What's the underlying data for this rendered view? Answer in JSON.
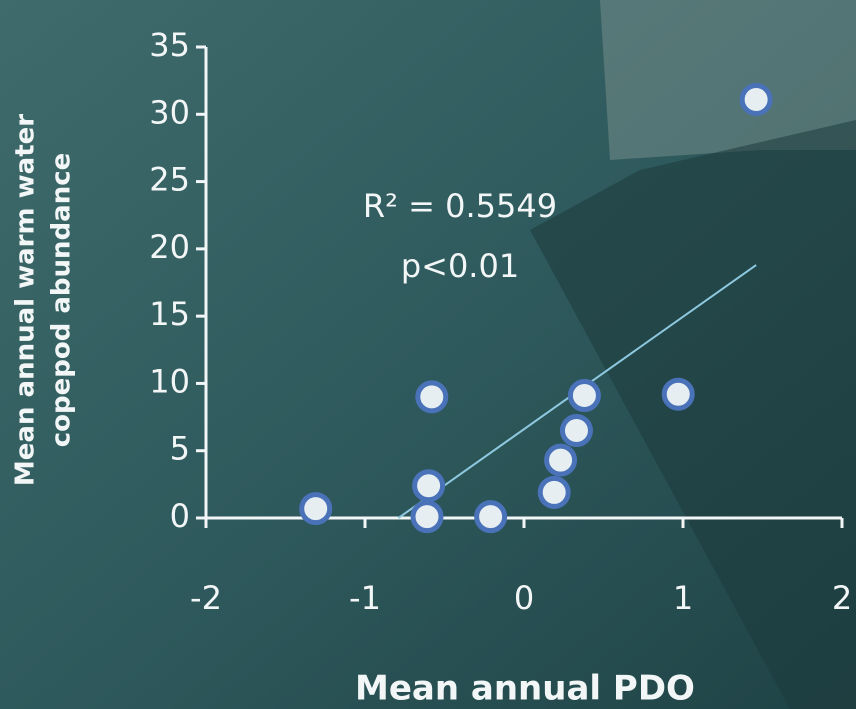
{
  "chart_data": {
    "type": "scatter",
    "x_label": "Mean annual PDO",
    "y_label": [
      "Mean annual warm water",
      "copepod abundance"
    ],
    "annotations": [
      "R² = 0.5549",
      "p<0.01"
    ],
    "series": [
      {
        "color": "#4a72b8",
        "x": [
          -1.31,
          -0.58,
          -0.6,
          -0.61,
          -0.21,
          0.19,
          0.23,
          0.38,
          0.33,
          0.97,
          1.46
        ],
        "values": [
          0.7,
          9.0,
          2.4,
          0.1,
          0.1,
          1.9,
          4.3,
          9.1,
          6.5,
          9.2,
          31.1
        ]
      }
    ],
    "trendline": {
      "color": "#8ec9e0",
      "x": [
        -0.79,
        1.46
      ],
      "values": [
        0,
        18.8
      ]
    },
    "xlim": [
      -2,
      2
    ],
    "xticks": [
      -2,
      -1,
      0,
      1,
      2
    ],
    "ylim": [
      0,
      35
    ],
    "yticks": [
      0,
      5,
      10,
      15,
      20,
      25,
      30,
      35
    ]
  }
}
